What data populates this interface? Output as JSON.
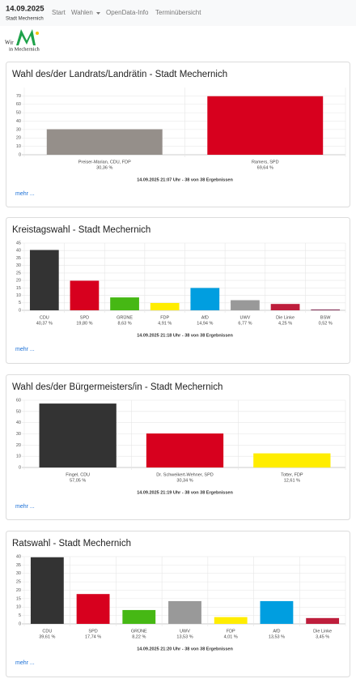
{
  "header": {
    "date": "14.09.2025",
    "place": "Stadt Mechernich"
  },
  "nav": [
    "Start",
    "Wahlen",
    "OpenData-Info",
    "Terminübersicht"
  ],
  "logo": {
    "line1": "Wir",
    "line2": "in Mechernich"
  },
  "chart_data": [
    {
      "type": "bar",
      "title": "Wahl des/der Landrats/Landrätin - Stadt Mechernich",
      "categories": [
        "Preiser-Marian, CDU, FDP",
        "Ramers, SPD"
      ],
      "values": [
        30.36,
        69.64
      ],
      "value_labels": [
        "30,36 %",
        "69,64 %"
      ],
      "colors": [
        "#958f8a",
        "#d7001e"
      ],
      "ylim": [
        0,
        80
      ],
      "yticks": [
        0,
        10,
        20,
        30,
        40,
        50,
        60,
        70
      ],
      "grid": true,
      "footnote": "14.09.2025 21:07 Uhr - 38 von 38 Ergebnissen",
      "more": "mehr ..."
    },
    {
      "type": "bar",
      "title": "Kreistagswahl - Stadt Mechernich",
      "categories": [
        "CDU",
        "SPD",
        "GRÜNE",
        "FDP",
        "AfD",
        "UWV",
        "Die Linke",
        "BSW"
      ],
      "values": [
        40.37,
        19.8,
        8.63,
        4.91,
        14.94,
        6.77,
        4.25,
        0.52
      ],
      "value_labels": [
        "40,37 %",
        "19,80 %",
        "8,63 %",
        "4,91 %",
        "14,94 %",
        "6,77 %",
        "4,25 %",
        "0,52 %"
      ],
      "colors": [
        "#333333",
        "#d7001e",
        "#46b814",
        "#ffed00",
        "#009ee0",
        "#999999",
        "#be1e3c",
        "#7d254f"
      ],
      "ylim": [
        0,
        45
      ],
      "yticks": [
        0,
        5,
        10,
        15,
        20,
        25,
        30,
        35,
        40,
        45
      ],
      "grid": true,
      "footnote": "14.09.2025 21:18 Uhr - 38 von 38 Ergebnissen",
      "more": "mehr ..."
    },
    {
      "type": "bar",
      "title": "Wahl des/der Bürgermeisters/in - Stadt Mechernich",
      "categories": [
        "Fingel, CDU",
        "Dr. Schweikert-Wehner, SPD",
        "Totter, FDP"
      ],
      "values": [
        57.05,
        30.34,
        12.61
      ],
      "value_labels": [
        "57,05 %",
        "30,34 %",
        "12,61 %"
      ],
      "colors": [
        "#333333",
        "#d7001e",
        "#ffed00"
      ],
      "ylim": [
        0,
        60
      ],
      "yticks": [
        0,
        10,
        20,
        30,
        40,
        50,
        60
      ],
      "grid": true,
      "footnote": "14.09.2025 21:19 Uhr - 38 von 38 Ergebnissen",
      "more": "mehr ..."
    },
    {
      "type": "bar",
      "title": "Ratswahl - Stadt Mechernich",
      "categories": [
        "CDU",
        "SPD",
        "GRÜNE",
        "UWV",
        "FDP",
        "AfD",
        "Die Linke"
      ],
      "values": [
        39.61,
        17.74,
        8.22,
        13.53,
        4.01,
        13.53,
        3.45
      ],
      "value_labels": [
        "39,61 %",
        "17,74 %",
        "8,22 %",
        "13,53 %",
        "4,01 %",
        "13,53 %",
        "3,45 %"
      ],
      "colors": [
        "#333333",
        "#d7001e",
        "#46b814",
        "#999999",
        "#ffed00",
        "#009ee0",
        "#be1e3c"
      ],
      "ylim": [
        0,
        40
      ],
      "yticks": [
        0,
        5,
        10,
        15,
        20,
        25,
        30,
        35,
        40
      ],
      "grid": true,
      "footnote": "14.09.2025 21:20 Uhr - 38 von 38 Ergebnissen",
      "more": "mehr ..."
    }
  ]
}
